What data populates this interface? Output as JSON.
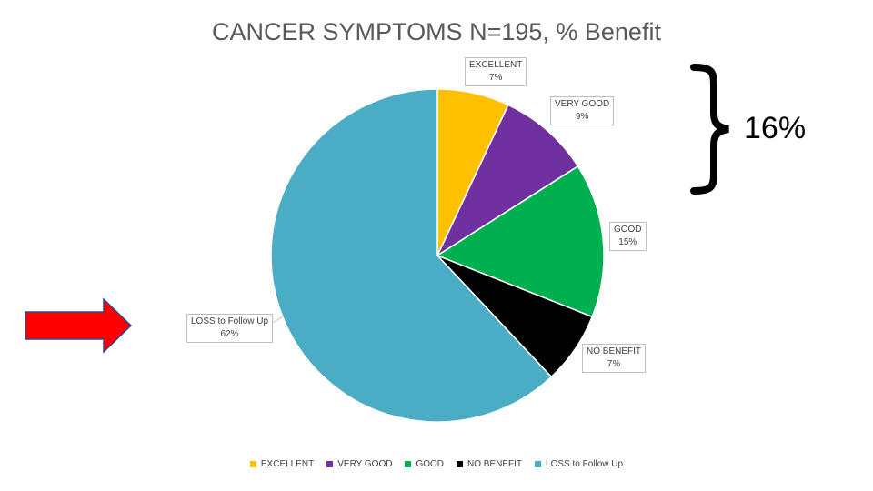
{
  "chart_data": {
    "type": "pie",
    "title": "CANCER SYMPTOMS N=195, % Benefit",
    "slices": [
      {
        "name": "EXCELLENT",
        "value": 7,
        "label": "7%",
        "color": "#FFC000"
      },
      {
        "name": "VERY GOOD",
        "value": 9,
        "label": "9%",
        "color": "#7030A0"
      },
      {
        "name": "GOOD",
        "value": 15,
        "label": "15%",
        "color": "#00B050"
      },
      {
        "name": "NO BENEFIT",
        "value": 7,
        "label": "7%",
        "color": "#000000"
      },
      {
        "name": "LOSS to Follow Up",
        "value": 62,
        "label": "62%",
        "color": "#4BACC6"
      }
    ],
    "legend_position": "bottom"
  },
  "annotation": {
    "brace_value": "16%",
    "brace_icon": "right-curly-brace-icon",
    "arrow_icon": "red-right-arrow-icon",
    "arrow_color": "#FF0000"
  },
  "legend": {
    "items": [
      {
        "label": "EXCELLENT",
        "color": "#FFC000"
      },
      {
        "label": "VERY GOOD",
        "color": "#7030A0"
      },
      {
        "label": "GOOD",
        "color": "#00B050"
      },
      {
        "label": "NO BENEFIT",
        "color": "#000000"
      },
      {
        "label": "LOSS to Follow Up",
        "color": "#4BACC6"
      }
    ]
  }
}
